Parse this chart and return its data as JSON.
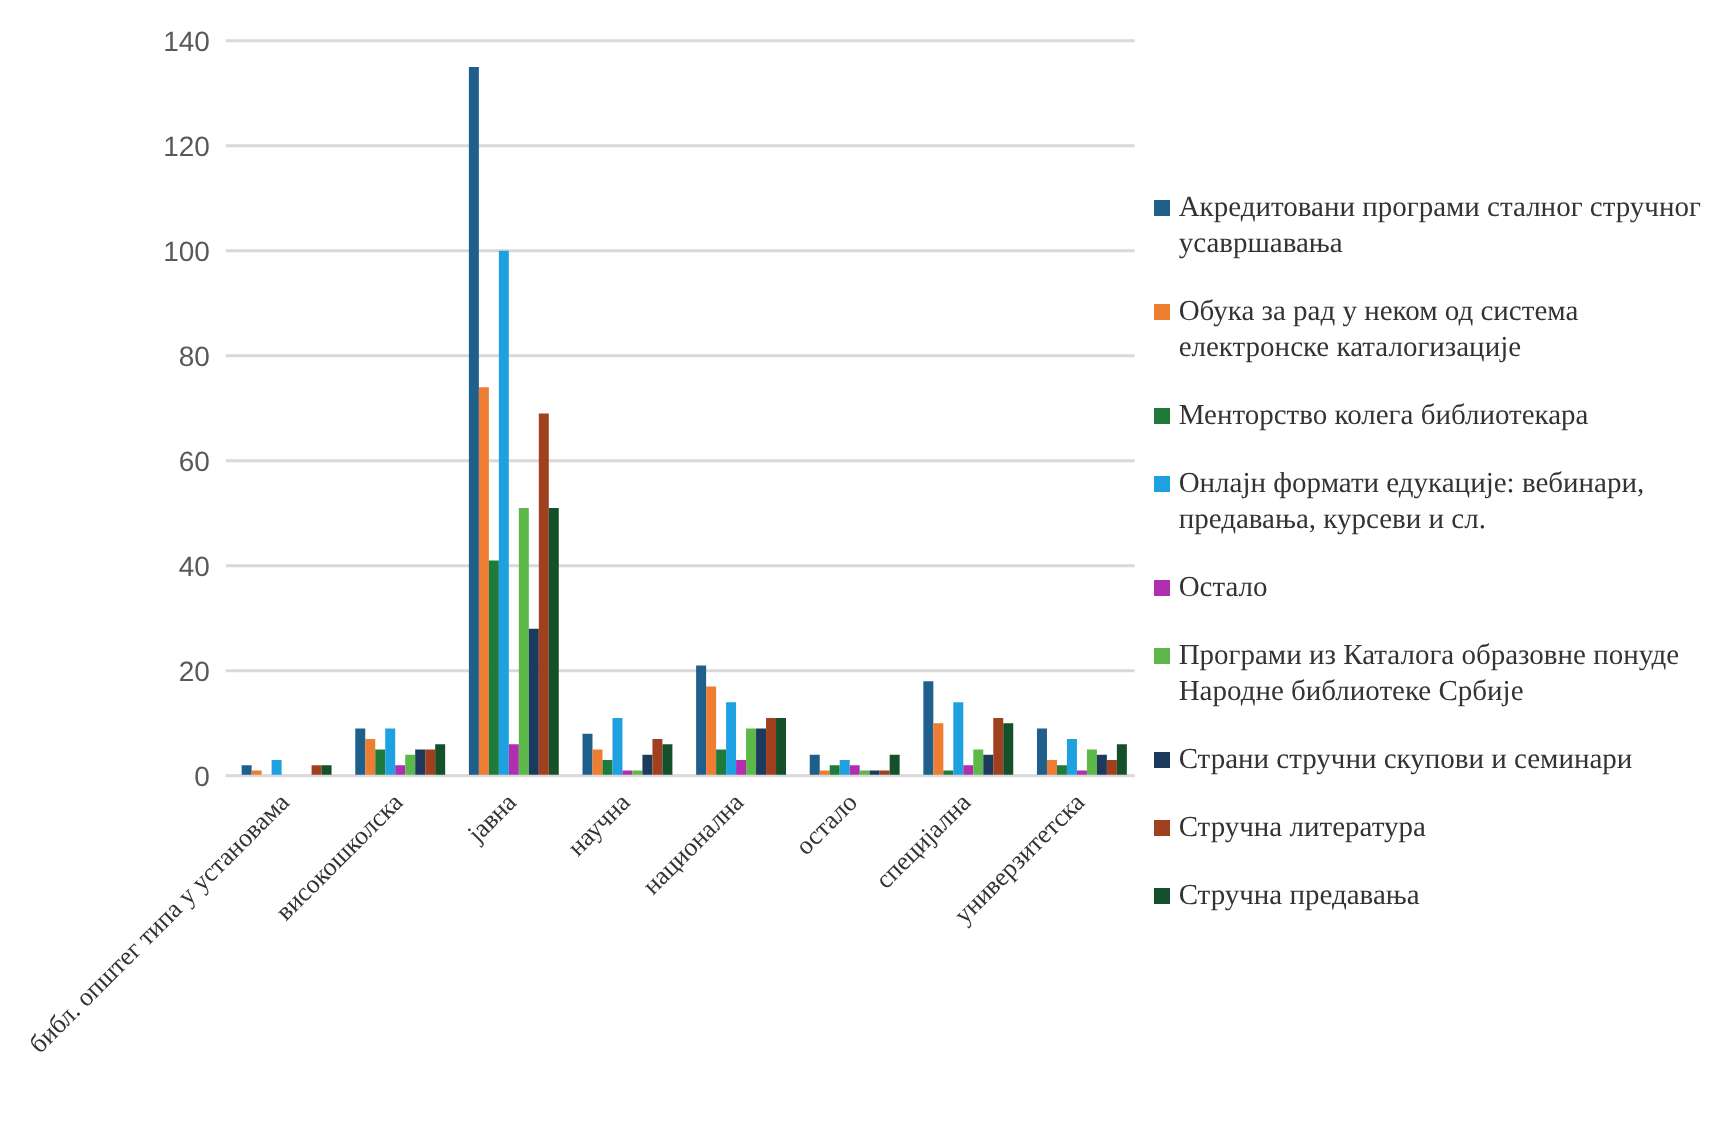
{
  "chart_data": {
    "type": "bar",
    "categories": [
      "библ. општег типа у установама",
      "високошколска",
      "јавна",
      "научна",
      "национална",
      "остало",
      "специјална",
      "универзитетска"
    ],
    "series": [
      {
        "name": "Акредитовани програми сталног стручног усавршавања",
        "color": "#1f5f8b",
        "values": [
          2,
          9,
          135,
          8,
          21,
          4,
          18,
          9
        ]
      },
      {
        "name": "Обука за рад у неком од система електронске каталогизације",
        "color": "#ed7d31",
        "values": [
          1,
          7,
          74,
          5,
          17,
          1,
          10,
          3
        ]
      },
      {
        "name": "Менторство колега библиотекара",
        "color": "#1e7b3c",
        "values": [
          0,
          5,
          41,
          3,
          5,
          2,
          1,
          2
        ]
      },
      {
        "name": "Онлајн формати едукације: вебинари, предавања, курсеви и сл.",
        "color": "#1ea1e0",
        "values": [
          3,
          9,
          100,
          11,
          14,
          3,
          14,
          7
        ]
      },
      {
        "name": "Остало",
        "color": "#b02fb0",
        "values": [
          0,
          2,
          6,
          1,
          3,
          2,
          2,
          1
        ]
      },
      {
        "name": "Програми из Каталога образовне понуде Народне библиотеке Србије",
        "color": "#5cb848",
        "values": [
          0,
          4,
          51,
          1,
          9,
          1,
          5,
          5
        ]
      },
      {
        "name": "Страни стручни скупови и семинари",
        "color": "#1b3a5c",
        "values": [
          0,
          5,
          28,
          4,
          9,
          1,
          4,
          4
        ]
      },
      {
        "name": "Стручна литература",
        "color": "#a1401e",
        "values": [
          2,
          5,
          69,
          7,
          11,
          1,
          11,
          3
        ]
      },
      {
        "name": "Стручна предавања",
        "color": "#14502a",
        "values": [
          2,
          6,
          51,
          6,
          11,
          4,
          10,
          6
        ]
      }
    ],
    "ylim": [
      0,
      140
    ],
    "yticks": [
      0,
      20,
      40,
      60,
      80,
      100,
      120,
      140
    ],
    "grid": "y",
    "legend": "right"
  }
}
